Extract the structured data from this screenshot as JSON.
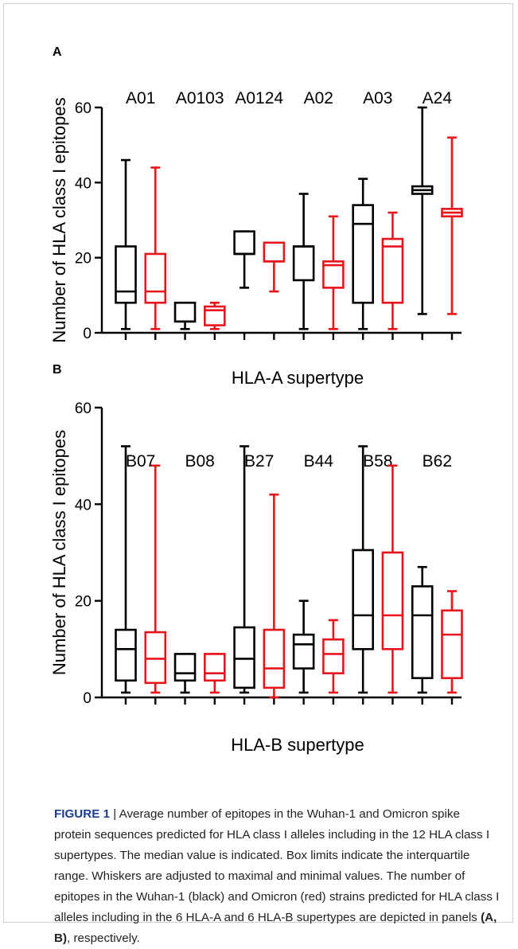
{
  "chart_data": [
    {
      "type": "box",
      "panel_label": "A",
      "title": "",
      "xlabel": "HLA-A supertype",
      "ylabel": "Number of HLA class I epitopes",
      "ylim": [
        0,
        60
      ],
      "yticks": [
        0,
        20,
        40,
        60
      ],
      "grid": false,
      "series": [
        {
          "color": "#000000"
        },
        {
          "color": "#e8141b"
        }
      ],
      "groups": [
        {
          "label": "A01",
          "boxes": [
            {
              "min": 1,
              "q1": 8,
              "median": 11,
              "q3": 23,
              "max": 46
            },
            {
              "min": 1,
              "q1": 8,
              "median": 11,
              "q3": 21,
              "max": 44
            }
          ]
        },
        {
          "label": "A0103",
          "boxes": [
            {
              "min": 1,
              "q1": 3,
              "median": 3,
              "q3": 8,
              "max": 8
            },
            {
              "min": 1,
              "q1": 2,
              "median": 6,
              "q3": 7,
              "max": 8
            }
          ]
        },
        {
          "label": "A0124",
          "boxes": [
            {
              "min": 12,
              "q1": 21,
              "median": 21,
              "q3": 27,
              "max": 27
            },
            {
              "min": 11,
              "q1": 19,
              "median": 19,
              "q3": 24,
              "max": 24
            }
          ]
        },
        {
          "label": "A02",
          "boxes": [
            {
              "min": 1,
              "q1": 14,
              "median": 23,
              "q3": 23,
              "max": 37
            },
            {
              "min": 1,
              "q1": 12,
              "median": 18,
              "q3": 19,
              "max": 31
            }
          ]
        },
        {
          "label": "A03",
          "boxes": [
            {
              "min": 1,
              "q1": 8,
              "median": 29,
              "q3": 34,
              "max": 41
            },
            {
              "min": 1,
              "q1": 8,
              "median": 23,
              "q3": 25,
              "max": 32
            }
          ]
        },
        {
          "label": "A24",
          "boxes": [
            {
              "min": 5,
              "q1": 37,
              "median": 38,
              "q3": 39,
              "max": 60
            },
            {
              "min": 5,
              "q1": 31,
              "median": 32,
              "q3": 33,
              "max": 52
            }
          ]
        }
      ]
    },
    {
      "type": "box",
      "panel_label": "B",
      "title": "",
      "xlabel": "HLA-B supertype",
      "ylabel": "Number of HLA class I epitopes",
      "ylim": [
        0,
        60
      ],
      "yticks": [
        0,
        20,
        40,
        60
      ],
      "grid": false,
      "series": [
        {
          "color": "#000000"
        },
        {
          "color": "#e8141b"
        }
      ],
      "groups": [
        {
          "label": "B07",
          "boxes": [
            {
              "min": 1,
              "q1": 3.5,
              "median": 10,
              "q3": 14,
              "max": 52
            },
            {
              "min": 1,
              "q1": 3,
              "median": 8,
              "q3": 13.5,
              "max": 48
            }
          ]
        },
        {
          "label": "B08",
          "boxes": [
            {
              "min": 1,
              "q1": 3.5,
              "median": 5,
              "q3": 9,
              "max": 9
            },
            {
              "min": 1,
              "q1": 3.5,
              "median": 5,
              "q3": 9,
              "max": 9
            }
          ]
        },
        {
          "label": "B27",
          "boxes": [
            {
              "min": 1,
              "q1": 2,
              "median": 8,
              "q3": 14.5,
              "max": 52
            },
            {
              "min": 0,
              "q1": 2,
              "median": 6,
              "q3": 14,
              "max": 42
            }
          ]
        },
        {
          "label": "B44",
          "boxes": [
            {
              "min": 1,
              "q1": 6,
              "median": 11,
              "q3": 13,
              "max": 20
            },
            {
              "min": 1,
              "q1": 5,
              "median": 9,
              "q3": 12,
              "max": 16
            }
          ]
        },
        {
          "label": "B58",
          "boxes": [
            {
              "min": 1,
              "q1": 10,
              "median": 17,
              "q3": 30.5,
              "max": 52
            },
            {
              "min": 1,
              "q1": 10,
              "median": 17,
              "q3": 30,
              "max": 48
            }
          ]
        },
        {
          "label": "B62",
          "boxes": [
            {
              "min": 1,
              "q1": 4,
              "median": 17,
              "q3": 23,
              "max": 27
            },
            {
              "min": 1,
              "q1": 4,
              "median": 13,
              "q3": 18,
              "max": 22
            }
          ]
        }
      ]
    }
  ],
  "caption": {
    "label": "FIGURE 1",
    "separator": " | ",
    "text_main": "Average number of epitopes in the Wuhan-1 and Omicron spike protein sequences predicted for HLA class I alleles including in the 12 HLA class I supertypes. The median value is indicated. Box limits indicate the interquartile range. Whiskers are adjusted to maximal and minimal values. The number of epitopes in the Wuhan-1 (black) and Omicron (red) strains predicted for HLA class I alleles including in the 6 HLA-A and 6 HLA-B supertypes are depicted in panels ",
    "text_panels": "(A, B)",
    "text_end": ", respectively."
  }
}
